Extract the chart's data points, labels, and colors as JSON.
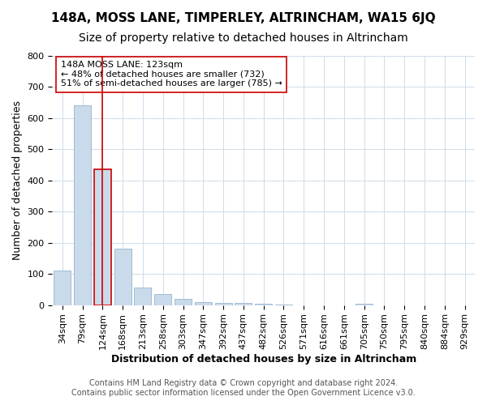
{
  "title1": "148A, MOSS LANE, TIMPERLEY, ALTRINCHAM, WA15 6JQ",
  "title2": "Size of property relative to detached houses in Altrincham",
  "xlabel": "Distribution of detached houses by size in Altrincham",
  "ylabel": "Number of detached properties",
  "categories": [
    "34sqm",
    "79sqm",
    "124sqm",
    "168sqm",
    "213sqm",
    "258sqm",
    "303sqm",
    "347sqm",
    "392sqm",
    "437sqm",
    "482sqm",
    "526sqm",
    "571sqm",
    "616sqm",
    "661sqm",
    "705sqm",
    "750sqm",
    "795sqm",
    "840sqm",
    "884sqm",
    "929sqm"
  ],
  "values": [
    110,
    642,
    435,
    180,
    55,
    35,
    20,
    10,
    8,
    6,
    3,
    1,
    0,
    0,
    0,
    3,
    0,
    0,
    0,
    0,
    0
  ],
  "bar_color": "#c9daea",
  "bar_edge_color": "#a0bcd4",
  "highlight_index": 2,
  "highlight_line_color": "#cc0000",
  "annotation_text": "148A MOSS LANE: 123sqm\n← 48% of detached houses are smaller (732)\n51% of semi-detached houses are larger (785) →",
  "annotation_box_color": "#ffffff",
  "annotation_box_edge_color": "#cc0000",
  "ylim": [
    0,
    800
  ],
  "yticks": [
    0,
    100,
    200,
    300,
    400,
    500,
    600,
    700,
    800
  ],
  "footer1": "Contains HM Land Registry data © Crown copyright and database right 2024.",
  "footer2": "Contains public sector information licensed under the Open Government Licence v3.0.",
  "title1_fontsize": 11,
  "title2_fontsize": 10,
  "axis_fontsize": 9,
  "tick_fontsize": 8,
  "annotation_fontsize": 8,
  "footer_fontsize": 7,
  "xlabel_fontsize": 9,
  "background_color": "#ffffff",
  "grid_color": "#d0dce8"
}
